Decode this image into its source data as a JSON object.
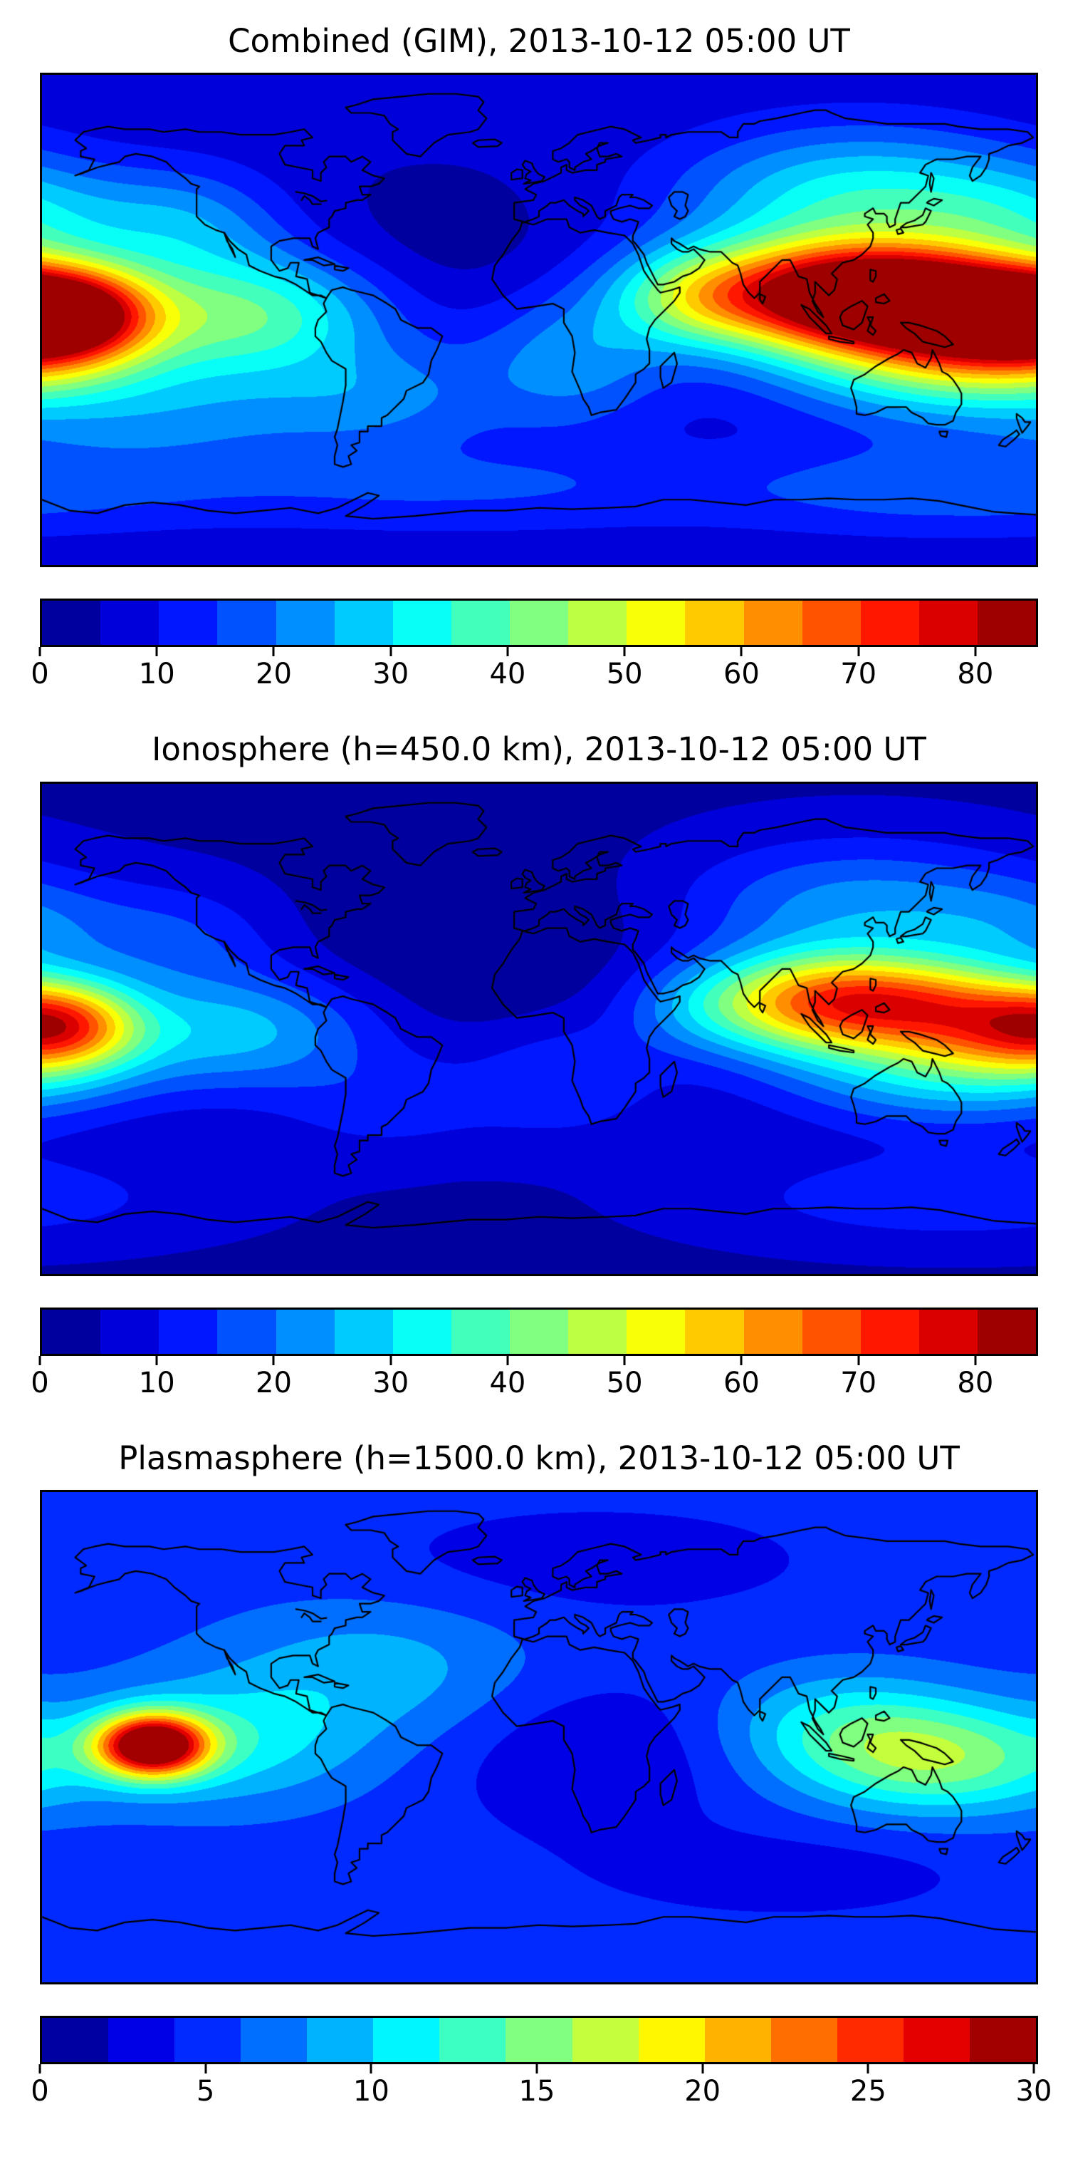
{
  "figure": {
    "background": "#ffffff",
    "map_border_color": "#000000",
    "coastline_color": "#000000",
    "colormap_name": "jet",
    "time_label": "2013-10-12 05:00 UT"
  },
  "chart_data": [
    {
      "type": "heatmap",
      "title": "Combined (GIM), 2013-10-12 05:00 UT",
      "projection": "equirectangular",
      "lon_range": [
        -180,
        180
      ],
      "lat_range": [
        -90,
        90
      ],
      "colormap": "jet",
      "levels": {
        "min": 0,
        "max": 85,
        "step": 5
      },
      "colorbar_ticks": [
        0,
        10,
        20,
        30,
        40,
        50,
        60,
        70,
        80
      ],
      "peak": {
        "approx_value": 85,
        "approx_lon": 140,
        "approx_lat": 8,
        "region": "Southeast Asia / western Pacific equatorial anomaly"
      },
      "field_model": {
        "base": 6,
        "gaussians": [
          [
            64,
            133,
            8,
            34,
            13
          ],
          [
            46,
            172,
            0,
            28,
            13
          ],
          [
            40,
            -168,
            3,
            20,
            12
          ],
          [
            46,
            95,
            10,
            38,
            14
          ],
          [
            16,
            55,
            8,
            20,
            12
          ],
          [
            16,
            12,
            -15,
            25,
            18
          ],
          [
            32,
            -105,
            2,
            35,
            16
          ],
          [
            12,
            -130,
            -35,
            45,
            15
          ],
          [
            26,
            115,
            45,
            45,
            18
          ],
          [
            15,
            -128,
            35,
            25,
            15
          ],
          [
            34,
            150,
            -14,
            45,
            16
          ],
          [
            12,
            -55,
            -28,
            30,
            14
          ],
          [
            12,
            150,
            -62,
            60,
            12
          ],
          [
            9,
            -30,
            -62,
            70,
            12
          ],
          [
            14,
            175,
            38,
            30,
            14
          ],
          [
            -4,
            -35,
            25,
            35,
            20
          ]
        ]
      }
    },
    {
      "type": "heatmap",
      "title": "Ionosphere  (h=450.0 km), 2013-10-12 05:00 UT",
      "projection": "equirectangular",
      "lon_range": [
        -180,
        180
      ],
      "lat_range": [
        -90,
        90
      ],
      "colormap": "jet",
      "levels": {
        "min": 0,
        "max": 85,
        "step": 5
      },
      "colorbar_ticks": [
        0,
        10,
        20,
        30,
        40,
        50,
        60,
        70,
        80
      ],
      "peak": {
        "approx_value": 72,
        "approx_lon": 135,
        "approx_lat": 10,
        "region": "Southeast Asia / western Pacific"
      },
      "field_model": {
        "base": 4,
        "gaussians": [
          [
            42,
            135,
            10,
            32,
            12
          ],
          [
            28,
            172,
            0,
            26,
            12
          ],
          [
            30,
            -170,
            2,
            18,
            11
          ],
          [
            38,
            95,
            10,
            28,
            13
          ],
          [
            10,
            55,
            8,
            20,
            12
          ],
          [
            22,
            -108,
            0,
            35,
            15
          ],
          [
            18,
            115,
            45,
            45,
            17
          ],
          [
            26,
            150,
            -14,
            45,
            15
          ],
          [
            10,
            150,
            -62,
            60,
            12
          ],
          [
            10,
            -130,
            33,
            25,
            14
          ],
          [
            10,
            10,
            -18,
            25,
            16
          ],
          [
            8,
            -55,
            -28,
            30,
            14
          ],
          [
            10,
            175,
            38,
            28,
            13
          ],
          [
            -3,
            -40,
            20,
            45,
            22
          ],
          [
            -2,
            10,
            35,
            40,
            20
          ]
        ]
      }
    },
    {
      "type": "heatmap",
      "title": "Plasmasphere (h=1500.0 km), 2013-10-12 05:00 UT",
      "projection": "equirectangular",
      "lon_range": [
        -180,
        180
      ],
      "lat_range": [
        -90,
        90
      ],
      "colormap": "jet",
      "levels": {
        "min": 0,
        "max": 30,
        "step": 2
      },
      "colorbar_ticks": [
        0,
        5,
        10,
        15,
        20,
        25,
        30
      ],
      "peak": {
        "approx_value": 30,
        "approx_lon": -140,
        "approx_lat": -3,
        "region": "central South Pacific"
      },
      "field_model": {
        "base": 5,
        "gaussians": [
          [
            26,
            -140,
            -3,
            14,
            8
          ],
          [
            6,
            -115,
            -2,
            35,
            16
          ],
          [
            10,
            145,
            -8,
            35,
            14
          ],
          [
            5,
            110,
            5,
            30,
            14
          ],
          [
            4,
            -60,
            25,
            40,
            18
          ],
          [
            -3,
            20,
            -8,
            35,
            20
          ],
          [
            -2,
            20,
            65,
            60,
            15
          ],
          [
            -2,
            90,
            -50,
            50,
            12
          ]
        ]
      }
    }
  ]
}
